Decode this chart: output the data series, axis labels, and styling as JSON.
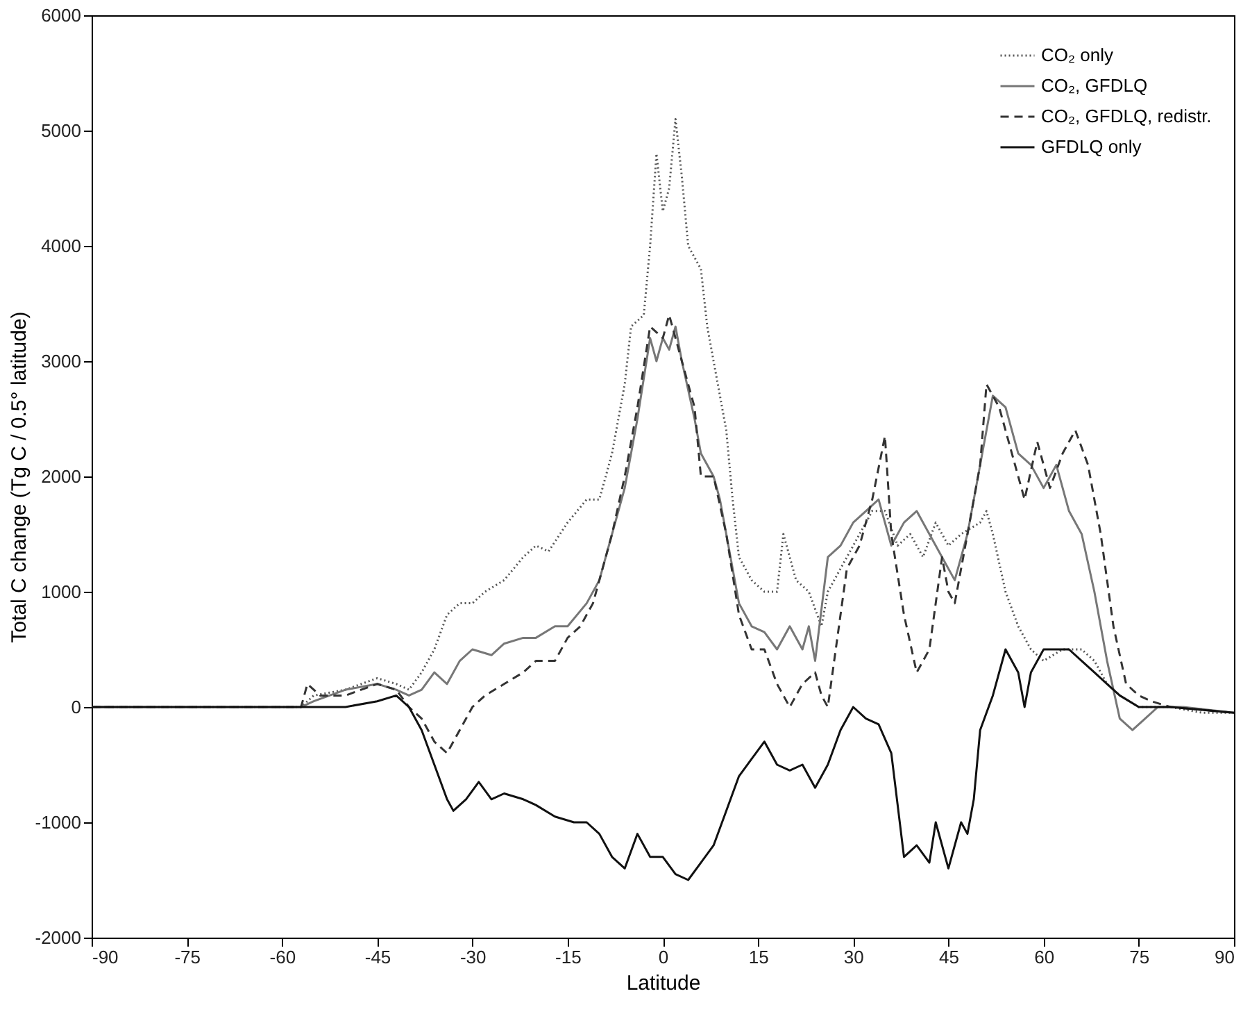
{
  "chart_data": {
    "type": "line",
    "xlabel": "Latitude",
    "ylabel": "Total C change (Tg C / 0.5° latitude)",
    "xlim": [
      -90,
      90
    ],
    "xticks": [
      -90,
      -75,
      -60,
      -45,
      -30,
      -15,
      0,
      15,
      30,
      45,
      60,
      75,
      90
    ],
    "ylim": [
      -2000,
      6000
    ],
    "yticks": [
      -2000,
      -1000,
      0,
      1000,
      2000,
      3000,
      4000,
      5000,
      6000
    ],
    "grid": false,
    "legend": "top right",
    "series": [
      {
        "name": "CO₂ only",
        "color": "#555555",
        "line_style": "dotted",
        "x": [
          -90,
          -57,
          -55,
          -50,
          -45,
          -42,
          -40,
          -38,
          -36,
          -34,
          -32,
          -30,
          -28,
          -25,
          -22,
          -20,
          -18,
          -15,
          -12,
          -10,
          -8,
          -6,
          -5,
          -3,
          -2,
          -1,
          0,
          1,
          2,
          3,
          4,
          6,
          7,
          8,
          10,
          11,
          12,
          14,
          16,
          18,
          19,
          21,
          23,
          25,
          26,
          28,
          30,
          33,
          35,
          37,
          39,
          41,
          43,
          45,
          47,
          50,
          51,
          52,
          54,
          56,
          58,
          60,
          63,
          66,
          68,
          70,
          72,
          75,
          80,
          85,
          90
        ],
        "values": [
          0,
          0,
          100,
          150,
          250,
          200,
          150,
          300,
          500,
          800,
          900,
          900,
          1000,
          1100,
          1300,
          1400,
          1350,
          1600,
          1800,
          1800,
          2200,
          2800,
          3300,
          3400,
          4000,
          4800,
          4300,
          4500,
          5100,
          4600,
          4000,
          3800,
          3300,
          3000,
          2400,
          1800,
          1300,
          1100,
          1000,
          1000,
          1500,
          1100,
          1000,
          700,
          1000,
          1200,
          1400,
          1700,
          1700,
          1400,
          1500,
          1300,
          1600,
          1400,
          1500,
          1600,
          1700,
          1500,
          1000,
          700,
          500,
          400,
          500,
          500,
          400,
          200,
          100,
          0,
          0,
          -50,
          -50
        ]
      },
      {
        "name": "CO₂, GFDLQ",
        "color": "#777777",
        "line_style": "solid",
        "x": [
          -90,
          -57,
          -55,
          -50,
          -45,
          -42,
          -40,
          -38,
          -36,
          -34,
          -32,
          -30,
          -27,
          -25,
          -22,
          -20,
          -17,
          -15,
          -12,
          -10,
          -8,
          -6,
          -4,
          -2,
          -1,
          0,
          1,
          2,
          3,
          5,
          6,
          8,
          9,
          10,
          12,
          14,
          16,
          18,
          20,
          22,
          23,
          24,
          26,
          28,
          30,
          32,
          34,
          36,
          38,
          40,
          42,
          44,
          46,
          48,
          50,
          52,
          54,
          56,
          58,
          60,
          62,
          64,
          66,
          68,
          70,
          72,
          74,
          76,
          78,
          82,
          90
        ],
        "values": [
          0,
          0,
          50,
          150,
          200,
          150,
          100,
          150,
          300,
          200,
          400,
          500,
          450,
          550,
          600,
          600,
          700,
          700,
          900,
          1100,
          1500,
          1900,
          2500,
          3200,
          3000,
          3200,
          3100,
          3300,
          3000,
          2500,
          2200,
          2000,
          1800,
          1500,
          900,
          700,
          650,
          500,
          700,
          500,
          700,
          400,
          1300,
          1400,
          1600,
          1700,
          1800,
          1400,
          1600,
          1700,
          1500,
          1300,
          1100,
          1500,
          2100,
          2700,
          2600,
          2200,
          2100,
          1900,
          2100,
          1700,
          1500,
          1000,
          400,
          -100,
          -200,
          -100,
          0,
          0,
          -50
        ]
      },
      {
        "name": "CO₂, GFDLQ, redistr.",
        "color": "#333333",
        "line_style": "dashed",
        "x": [
          -90,
          -57,
          -56,
          -54,
          -50,
          -45,
          -42,
          -40,
          -38,
          -36,
          -34,
          -32,
          -30,
          -28,
          -25,
          -22,
          -20,
          -17,
          -15,
          -13,
          -11,
          -10,
          -8,
          -6,
          -4,
          -2,
          0,
          1,
          3,
          5,
          6,
          8,
          10,
          12,
          14,
          16,
          18,
          20,
          22,
          24,
          25,
          26,
          27,
          29,
          31,
          33,
          35,
          36,
          38,
          40,
          42,
          44,
          45,
          46,
          48,
          50,
          51,
          53,
          55,
          57,
          59,
          61,
          63,
          65,
          67,
          69,
          71,
          73,
          75,
          77,
          80,
          90
        ],
        "values": [
          0,
          0,
          200,
          100,
          100,
          200,
          150,
          0,
          -100,
          -300,
          -400,
          -200,
          0,
          100,
          200,
          300,
          400,
          400,
          600,
          700,
          900,
          1100,
          1500,
          2000,
          2600,
          3300,
          3200,
          3400,
          3000,
          2600,
          2000,
          2000,
          1500,
          800,
          500,
          500,
          200,
          0,
          200,
          300,
          100,
          0,
          400,
          1200,
          1400,
          1800,
          2350,
          1500,
          800,
          300,
          500,
          1300,
          1000,
          900,
          1500,
          2100,
          2800,
          2600,
          2200,
          1800,
          2300,
          1900,
          2200,
          2400,
          2100,
          1500,
          700,
          200,
          100,
          50,
          0,
          -50
        ]
      },
      {
        "name": "GFDLQ only",
        "color": "#111111",
        "line_style": "solid",
        "x": [
          -90,
          -57,
          -50,
          -45,
          -42,
          -40,
          -38,
          -36,
          -34,
          -33,
          -31,
          -29,
          -27,
          -25,
          -22,
          -20,
          -17,
          -14,
          -12,
          -10,
          -8,
          -6,
          -4,
          -2,
          0,
          2,
          4,
          6,
          8,
          10,
          12,
          14,
          16,
          18,
          20,
          22,
          24,
          26,
          28,
          30,
          32,
          34,
          36,
          38,
          40,
          42,
          43,
          45,
          47,
          48,
          49,
          50,
          52,
          54,
          56,
          57,
          58,
          60,
          62,
          64,
          66,
          68,
          70,
          72,
          75,
          80,
          90
        ],
        "values": [
          0,
          0,
          0,
          50,
          100,
          0,
          -200,
          -500,
          -800,
          -900,
          -800,
          -650,
          -800,
          -750,
          -800,
          -850,
          -950,
          -1000,
          -1000,
          -1100,
          -1300,
          -1400,
          -1100,
          -1300,
          -1300,
          -1450,
          -1500,
          -1350,
          -1200,
          -900,
          -600,
          -450,
          -300,
          -500,
          -550,
          -500,
          -700,
          -500,
          -200,
          0,
          -100,
          -150,
          -400,
          -1300,
          -1200,
          -1350,
          -1000,
          -1400,
          -1000,
          -1100,
          -800,
          -200,
          100,
          500,
          300,
          0,
          300,
          500,
          500,
          500,
          400,
          300,
          200,
          100,
          0,
          0,
          -50
        ]
      }
    ]
  }
}
